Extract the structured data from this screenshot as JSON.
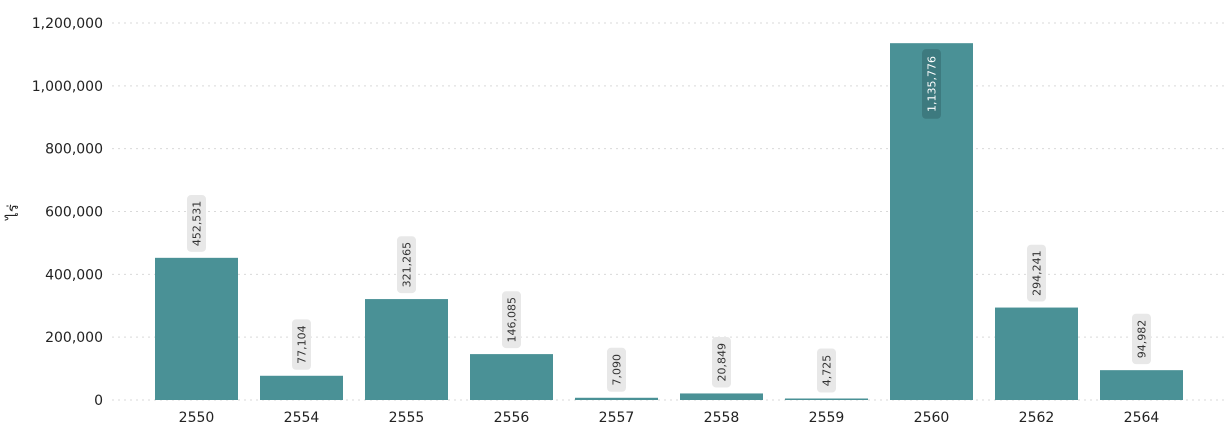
{
  "chart_data": {
    "type": "bar",
    "title": "",
    "xlabel": "",
    "ylabel": "ไร่",
    "categories": [
      "2550",
      "2554",
      "2555",
      "2556",
      "2557",
      "2558",
      "2559",
      "2560",
      "2562",
      "2564"
    ],
    "values": [
      452531,
      77104,
      321265,
      146085,
      7090,
      20849,
      4725,
      1135776,
      294241,
      94982
    ],
    "data_labels": [
      "452,531",
      "77,104",
      "321,265",
      "146,085",
      "7,090",
      "20,849",
      "4,725",
      "1,135,776",
      "294,241",
      "94,982"
    ],
    "yticks": [
      0,
      200000,
      400000,
      600000,
      800000,
      1000000,
      1200000
    ],
    "ytick_labels": [
      "0",
      "200,000",
      "400,000",
      "600,000",
      "800,000",
      "1,000,000",
      "1,200,000"
    ],
    "ylim": [
      0,
      1200000
    ],
    "grid": true,
    "legend": "none",
    "bar_color": "#4a9196",
    "grid_color": "#d9d9d9"
  }
}
